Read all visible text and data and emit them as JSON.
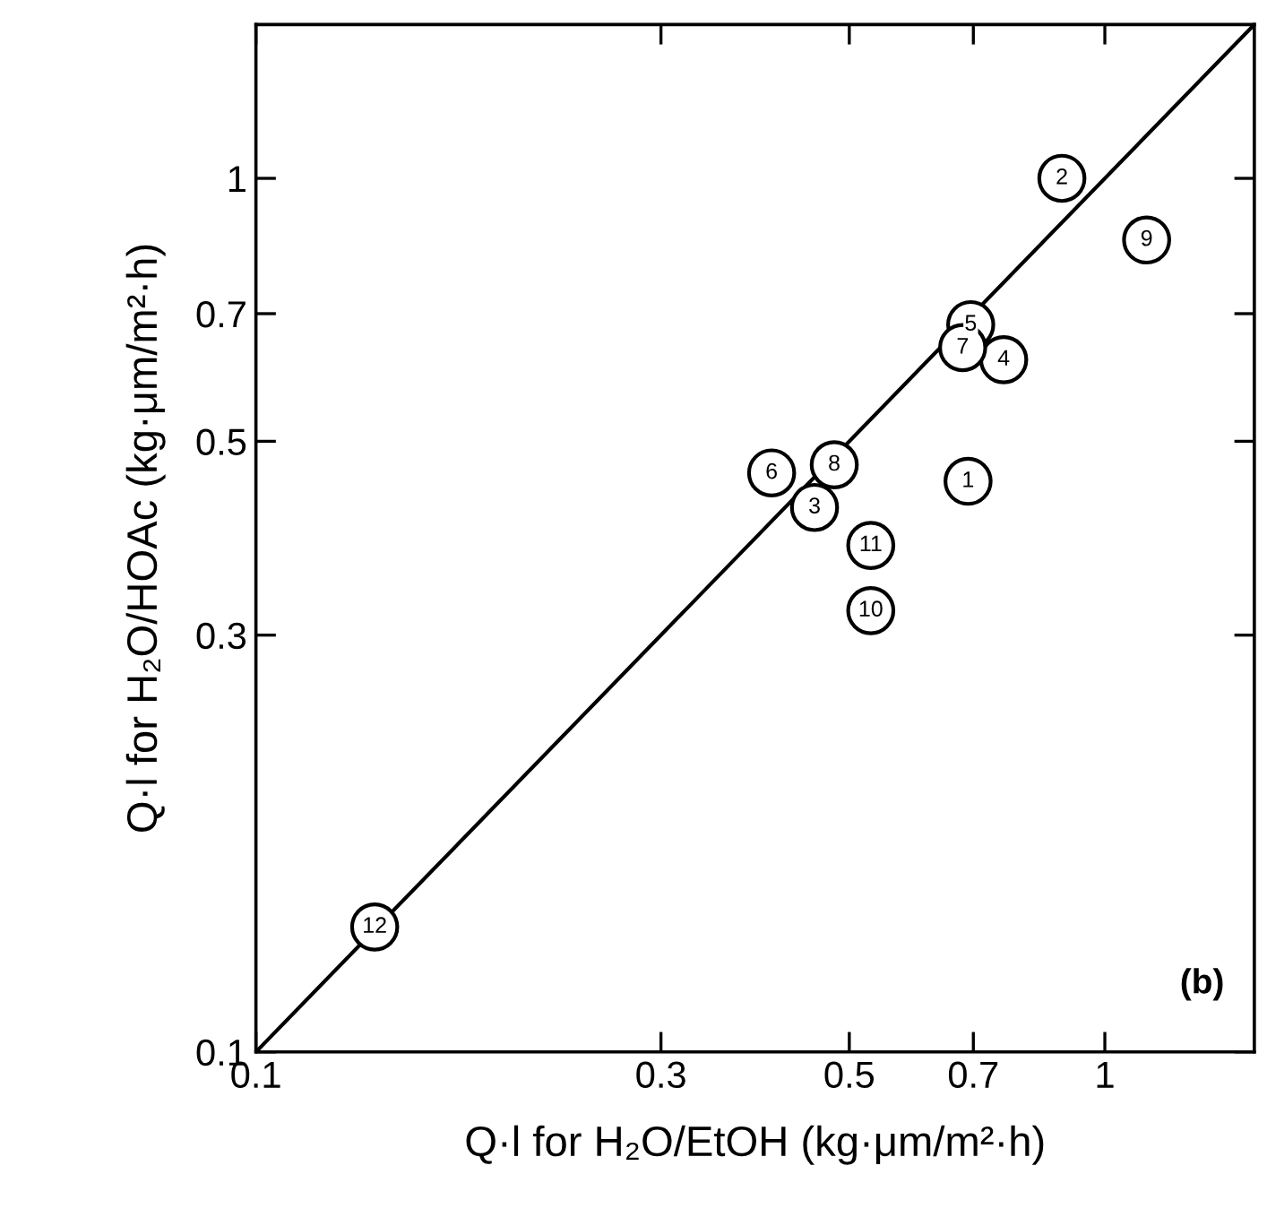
{
  "chart_data": {
    "type": "scatter",
    "xlabel": "Q·l for H₂O/EtOH (kg·μm/m²·h)",
    "ylabel": "Q·l for H₂O/HOAc (kg·μm/m²·h)",
    "log": "xy",
    "xlim": [
      0.1,
      1.5
    ],
    "ylim": [
      0.1,
      1.5
    ],
    "xticks": [
      0.1,
      0.3,
      0.5,
      0.7,
      1
    ],
    "yticks": [
      0.1,
      0.3,
      0.5,
      0.7,
      1
    ],
    "grid": false,
    "legend": false,
    "marker": "circle",
    "annotations": [
      "(b)",
      {
        "text": "1",
        "x": 0.69,
        "y": 0.45
      },
      {
        "text": "2",
        "x": 0.89,
        "y": 1.0
      },
      {
        "text": "3",
        "x": 0.455,
        "y": 0.42
      },
      {
        "text": "4",
        "x": 0.76,
        "y": 0.62
      },
      {
        "text": "5",
        "x": 0.695,
        "y": 0.68
      },
      {
        "text": "6",
        "x": 0.405,
        "y": 0.46
      },
      {
        "text": "7",
        "x": 0.68,
        "y": 0.64
      },
      {
        "text": "8",
        "x": 0.48,
        "y": 0.47
      },
      {
        "text": "9",
        "x": 1.12,
        "y": 0.85
      },
      {
        "text": "10",
        "x": 0.53,
        "y": 0.32
      },
      {
        "text": "11",
        "x": 0.53,
        "y": 0.38
      },
      {
        "text": "12",
        "x": 0.138,
        "y": 0.139
      }
    ],
    "series": [
      {
        "color": "#000000",
        "x": [
          0.69,
          0.89,
          0.455,
          0.76,
          0.695,
          0.405,
          0.68,
          0.48,
          1.12,
          0.53,
          0.53,
          0.138
        ],
        "values": [
          0.45,
          1.0,
          0.42,
          0.62,
          0.68,
          0.46,
          0.64,
          0.47,
          0.85,
          0.32,
          0.38,
          0.139
        ]
      },
      {
        "type": "line",
        "color": "#000000",
        "line_style": "solid",
        "marker": "none",
        "x": [
          0.1,
          1.5
        ],
        "values": [
          0.1,
          1.5
        ]
      }
    ]
  }
}
